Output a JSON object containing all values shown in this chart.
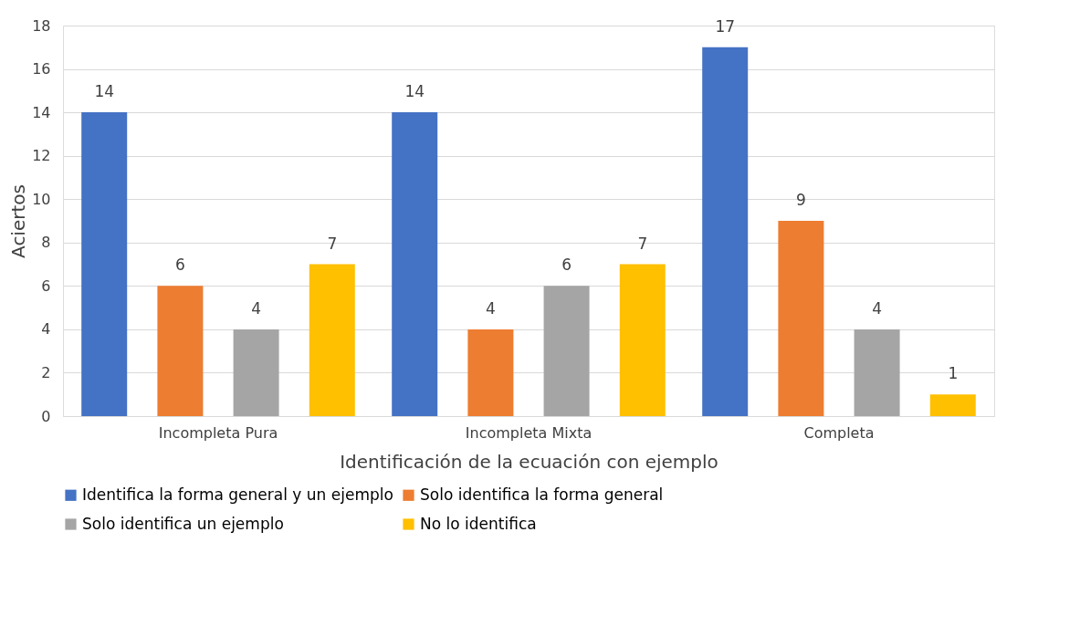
{
  "chart_data": {
    "type": "bar",
    "xlabel": "Identificación de la ecuación con ejemplo",
    "ylabel": "Aciertos",
    "categories": [
      "Incompleta Pura",
      "Incompleta Mixta",
      "Completa"
    ],
    "series": [
      {
        "name": "Identifica la forma general y un ejemplo",
        "color": "#4472c4",
        "values": [
          14,
          14,
          17
        ]
      },
      {
        "name": "Solo identifica la forma general",
        "color": "#ed7d31",
        "values": [
          6,
          4,
          9
        ]
      },
      {
        "name": "Solo identifica un ejemplo",
        "color": "#a5a5a5",
        "values": [
          4,
          6,
          4
        ]
      },
      {
        "name": "No lo identifica",
        "color": "#ffc000",
        "values": [
          7,
          7,
          1
        ]
      }
    ],
    "ylim": [
      0,
      18
    ],
    "yticks": [
      0,
      2,
      4,
      6,
      8,
      10,
      12,
      14,
      16,
      18
    ],
    "grid": "y",
    "legend": "bottom",
    "data_labels": true
  }
}
